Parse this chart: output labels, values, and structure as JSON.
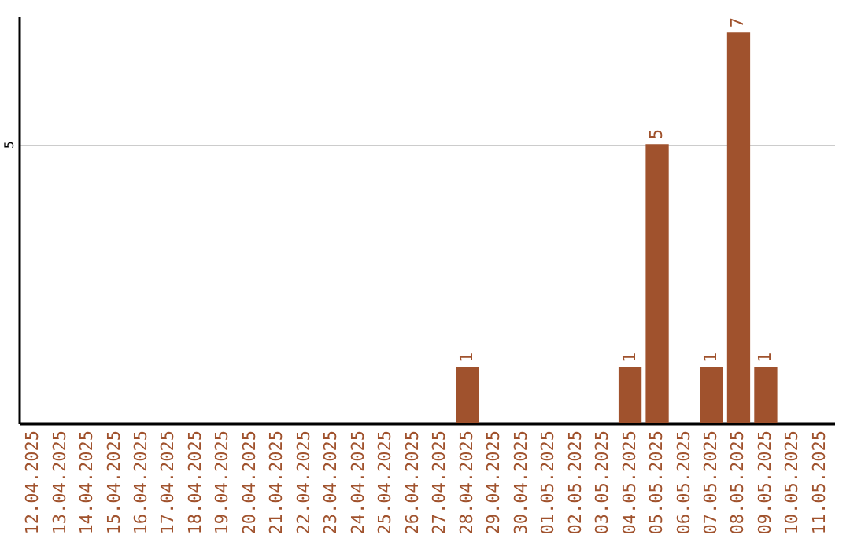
{
  "chart_data": {
    "type": "bar",
    "categories": [
      "12.04.2025",
      "13.04.2025",
      "14.04.2025",
      "15.04.2025",
      "16.04.2025",
      "17.04.2025",
      "18.04.2025",
      "19.04.2025",
      "20.04.2025",
      "21.04.2025",
      "22.04.2025",
      "23.04.2025",
      "24.04.2025",
      "25.04.2025",
      "26.04.2025",
      "27.04.2025",
      "28.04.2025",
      "29.04.2025",
      "30.04.2025",
      "01.05.2025",
      "02.05.2025",
      "03.05.2025",
      "04.05.2025",
      "05.05.2025",
      "06.05.2025",
      "07.05.2025",
      "08.05.2025",
      "09.05.2025",
      "10.05.2025",
      "11.05.2025"
    ],
    "values": [
      null,
      null,
      null,
      null,
      null,
      null,
      null,
      null,
      null,
      null,
      null,
      null,
      null,
      null,
      null,
      null,
      1,
      null,
      null,
      null,
      null,
      null,
      1,
      5,
      null,
      1,
      7,
      1,
      null,
      null
    ],
    "color": "#a0522d",
    "ylim": [
      0,
      7.3
    ],
    "yticks": [
      5
    ],
    "grid": "y",
    "data_labels": true
  }
}
